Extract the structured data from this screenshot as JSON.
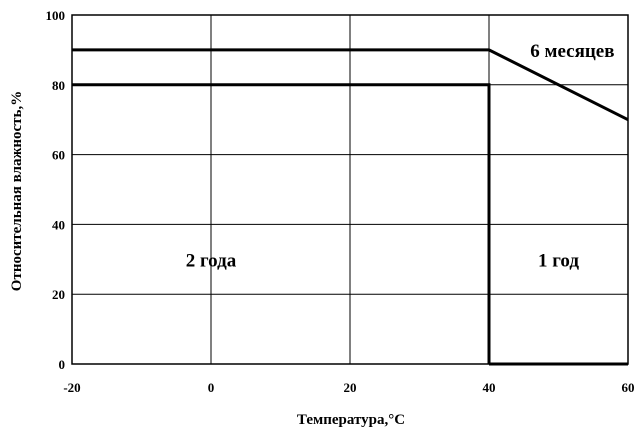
{
  "chart_data": {
    "type": "line",
    "xlabel": "Температура,°C",
    "ylabel": "Относительная влажность,%",
    "xlim": [
      -20,
      60
    ],
    "ylim": [
      0,
      100
    ],
    "x_ticks": [
      -20,
      0,
      20,
      40,
      60
    ],
    "y_ticks": [
      0,
      20,
      40,
      60,
      80,
      100
    ],
    "x_tick_labels": [
      "-20",
      "0",
      "20",
      "40",
      "60"
    ],
    "y_tick_labels": [
      "0",
      "20",
      "40",
      "60",
      "80",
      "100"
    ],
    "grid": true,
    "series": [
      {
        "x": [
          -20,
          40,
          40
        ],
        "y": [
          80,
          80,
          0
        ]
      },
      {
        "x": [
          -20,
          40,
          60
        ],
        "y": [
          90,
          90,
          70
        ]
      },
      {
        "x": [
          40,
          60
        ],
        "y": [
          0,
          0
        ]
      }
    ],
    "annotations": [
      {
        "text": "2 года",
        "x": 0,
        "y": 30
      },
      {
        "text": "1 год",
        "x": 50,
        "y": 30
      },
      {
        "text": "6 месяцев",
        "x": 52,
        "y": 90
      }
    ]
  }
}
